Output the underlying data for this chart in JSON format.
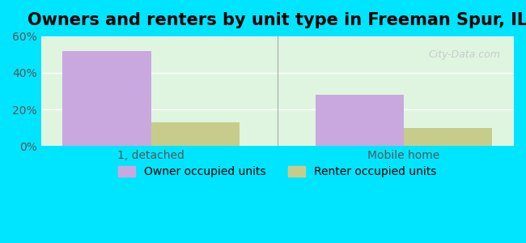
{
  "title": "Owners and renters by unit type in Freeman Spur, IL",
  "categories": [
    "1, detached",
    "Mobile home"
  ],
  "owner_values": [
    52,
    28
  ],
  "renter_values": [
    13,
    10
  ],
  "owner_color": "#c9a8e0",
  "renter_color": "#c8cc8a",
  "background_color": "#e0f5e0",
  "outer_background": "#00e5ff",
  "ylim": [
    0,
    60
  ],
  "yticks": [
    0,
    20,
    40,
    60
  ],
  "ytick_labels": [
    "0%",
    "20%",
    "40%",
    "60%"
  ],
  "bar_width": 0.35,
  "legend_labels": [
    "Owner occupied units",
    "Renter occupied units"
  ],
  "watermark": "City-Data.com",
  "title_fontsize": 15,
  "tick_fontsize": 10,
  "legend_fontsize": 10
}
